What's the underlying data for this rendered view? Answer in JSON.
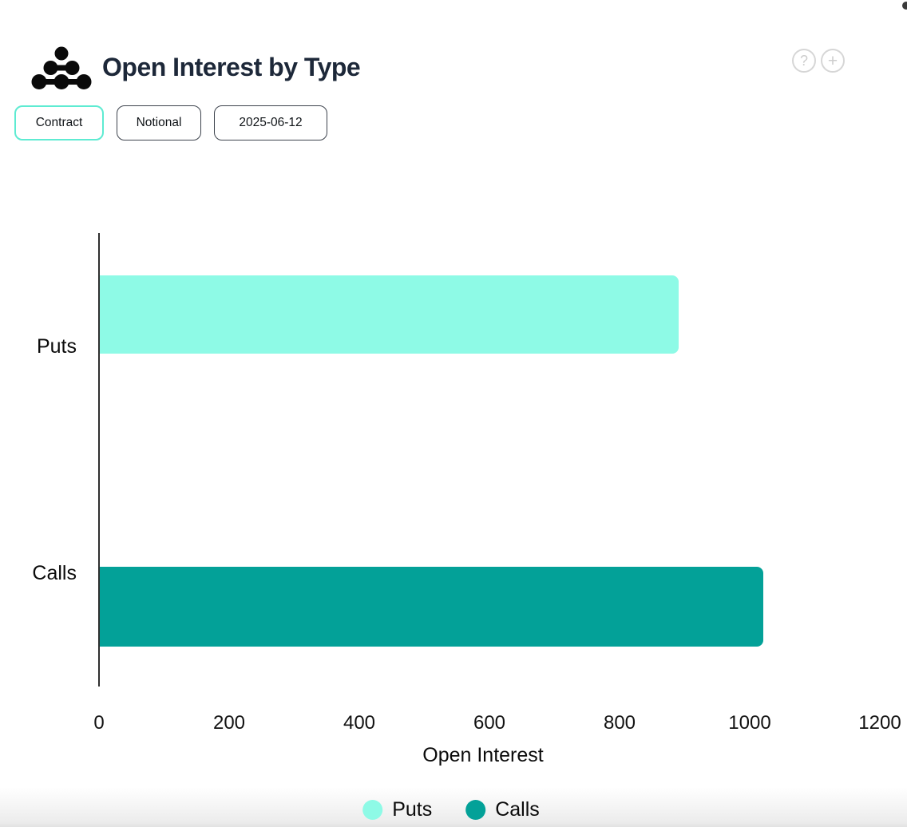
{
  "header": {
    "title": "Open Interest by Type",
    "help_icon_glyph": "?",
    "add_icon_glyph": "+"
  },
  "toolbar": {
    "buttons": [
      {
        "label": "Contract",
        "active": true
      },
      {
        "label": "Notional",
        "active": false
      },
      {
        "label": "2025-06-12",
        "active": false
      }
    ]
  },
  "chart_data": {
    "type": "bar",
    "orientation": "horizontal",
    "title": "Open Interest by Type",
    "xlabel": "Open Interest",
    "ylabel": "",
    "categories": [
      "Puts",
      "Calls"
    ],
    "series": [
      {
        "name": "Puts",
        "color": "#8EFAE6",
        "values": [
          890,
          0
        ]
      },
      {
        "name": "Calls",
        "color": "#03A198",
        "values": [
          0,
          1020
        ]
      }
    ],
    "xlim": [
      0,
      1200
    ],
    "xticks": [
      0,
      200,
      400,
      600,
      800,
      1000,
      1200
    ],
    "grid": false,
    "legend_position": "bottom"
  },
  "colors": {
    "accent_active_border": "#5EEBD2",
    "inactive_border": "#3D434D",
    "title_text": "#1D2839",
    "axis_line": "#2F2F2F",
    "icon_gray": "#D6D6D6"
  }
}
